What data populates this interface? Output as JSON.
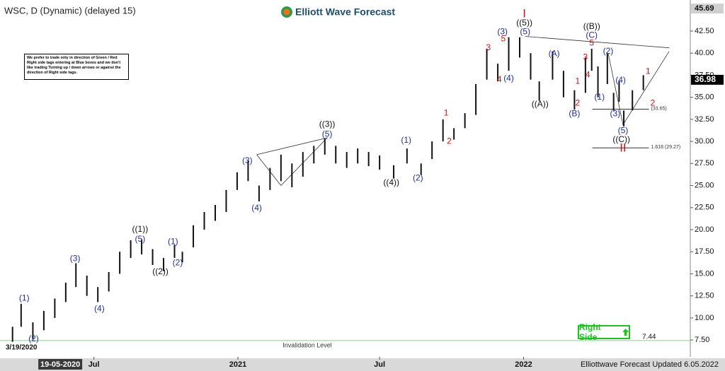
{
  "chart_data": {
    "type": "ohlc",
    "title": "WSC, D (Dynamic) (delayed 15)",
    "logo": "Elliott Wave Forecast",
    "notice": "We prefer to trade only in direction of Green / Red Right side tags entering at Blue boxes and we don't like trading Turning up / down arrows or against the direction of Right side tags.",
    "footer": "Elliottwave Forecast Updated 6.05.2022",
    "start_label": "3/19/2020",
    "right_side": "Right Side",
    "cursor_label": {
      "value": "2020-05-19",
      "label": "19-05-2020"
    },
    "xlim": [
      "2020-03-03",
      "2022-08-02"
    ],
    "ylim": [
      5.59,
      46.02
    ],
    "xticks": [
      {
        "value": "2020-07-01",
        "label": "Jul"
      },
      {
        "value": "2021-01-01",
        "label": "2021"
      },
      {
        "value": "2021-07-01",
        "label": "Jul"
      },
      {
        "value": "2022-01-01",
        "label": "2022"
      }
    ],
    "yticks": [
      {
        "value": 7.5,
        "label": "7.50"
      },
      {
        "value": 10,
        "label": "10.00"
      },
      {
        "value": 12.5,
        "label": "12.50"
      },
      {
        "value": 15,
        "label": "15.00"
      },
      {
        "value": 17.5,
        "label": "17.50"
      },
      {
        "value": 20,
        "label": "20.00"
      },
      {
        "value": 22.5,
        "label": "22.50"
      },
      {
        "value": 25,
        "label": "25.00"
      },
      {
        "value": 27.5,
        "label": "27.50"
      },
      {
        "value": 30,
        "label": "30.00"
      },
      {
        "value": 32.5,
        "label": "32.50"
      },
      {
        "value": 35,
        "label": "35.00"
      },
      {
        "value": 37.5,
        "label": "37.50"
      },
      {
        "value": 40,
        "label": "40.00"
      },
      {
        "value": 42.5,
        "label": "42.50"
      }
    ],
    "top_label": {
      "value": 45.69,
      "label": "45.69"
    },
    "last": {
      "value": 36.98,
      "label": "36.98"
    },
    "color": "#111111",
    "bars": {
      "x": [
        "2020-03-19",
        "2020-03-30",
        "2020-04-14",
        "2020-04-28",
        "2020-05-12",
        "2020-05-26",
        "2020-06-08",
        "2020-06-22",
        "2020-07-06",
        "2020-07-20",
        "2020-08-03",
        "2020-08-17",
        "2020-08-31",
        "2020-09-14",
        "2020-09-28",
        "2020-10-12",
        "2020-10-22",
        "2020-11-05",
        "2020-11-19",
        "2020-12-03",
        "2020-12-17",
        "2020-12-31",
        "2021-01-14",
        "2021-01-28",
        "2021-02-11",
        "2021-02-25",
        "2021-03-11",
        "2021-03-25",
        "2021-04-08",
        "2021-04-22",
        "2021-05-06",
        "2021-05-20",
        "2021-06-03",
        "2021-06-17",
        "2021-07-01",
        "2021-07-19",
        "2021-08-05",
        "2021-08-23",
        "2021-09-06",
        "2021-09-20",
        "2021-10-04",
        "2021-10-18",
        "2021-11-01",
        "2021-11-15",
        "2021-11-29",
        "2021-12-13",
        "2021-12-27",
        "2022-01-10",
        "2022-01-21",
        "2022-02-07",
        "2022-02-21",
        "2022-03-07",
        "2022-03-21",
        "2022-03-29",
        "2022-04-06",
        "2022-04-18",
        "2022-04-26",
        "2022-05-03",
        "2022-05-09",
        "2022-05-20",
        "2022-06-03"
      ],
      "high": [
        9.0,
        11.6,
        9.5,
        10.8,
        12.2,
        14.0,
        16.2,
        14.8,
        13.5,
        15.2,
        17.5,
        18.8,
        18.9,
        17.8,
        16.8,
        18.3,
        17.5,
        20.5,
        22.0,
        22.8,
        24.5,
        26.5,
        27.8,
        25.0,
        27.0,
        28.5,
        27.5,
        28.8,
        29.5,
        30.3,
        29.5,
        28.8,
        29.2,
        28.8,
        28.4,
        27.3,
        29.2,
        27.5,
        30.0,
        32.5,
        31.5,
        33.2,
        36.5,
        40.5,
        38.8,
        41.8,
        41.8,
        40.0,
        36.8,
        40.2,
        38.0,
        35.8,
        39.5,
        40.5,
        38.5,
        40.0,
        35.5,
        36.8,
        33.5,
        35.8,
        37.5
      ],
      "low": [
        7.3,
        9.0,
        7.6,
        8.6,
        10.0,
        11.8,
        13.5,
        12.5,
        11.8,
        13.0,
        15.0,
        16.8,
        17.2,
        16.0,
        15.3,
        16.8,
        16.3,
        18.0,
        20.0,
        21.0,
        22.0,
        24.5,
        25.5,
        23.2,
        24.5,
        25.5,
        24.8,
        26.0,
        27.5,
        28.5,
        27.5,
        27.0,
        27.5,
        27.2,
        26.8,
        25.8,
        27.5,
        26.2,
        28.0,
        30.0,
        30.2,
        31.5,
        33.0,
        37.0,
        36.8,
        38.0,
        39.5,
        37.0,
        34.6,
        37.0,
        35.0,
        33.6,
        35.5,
        38.0,
        35.0,
        36.5,
        33.5,
        34.5,
        31.7,
        33.5,
        35.8
      ]
    },
    "levels": [
      {
        "value": 7.44,
        "label": "7.44",
        "note": "Invalidation Level",
        "color": "#7fd77f"
      },
      {
        "value": 33.65,
        "label": "(33.65)",
        "start": "2022-04-06",
        "color": "#333333"
      },
      {
        "value": 29.27,
        "label": "1.618 (29.27)",
        "start": "2022-04-06",
        "color": "#333333"
      }
    ],
    "trendlines": [
      {
        "x": [
          "2022-01-03",
          "2022-07-06"
        ],
        "y": [
          41.9,
          40.6
        ]
      },
      {
        "x": [
          "2022-04-19",
          "2022-05-08",
          "2022-07-06"
        ],
        "y": [
          40.0,
          31.9,
          40.2
        ]
      },
      {
        "x": [
          "2021-01-25",
          "2021-04-25",
          "2021-02-25",
          "2021-01-25"
        ],
        "y": [
          28.5,
          30.4,
          25.0,
          28.5
        ]
      }
    ],
    "annotations": [
      {
        "text": "(1)",
        "x": "2020-04-03",
        "y": 12.2,
        "color": "#1f2f9a"
      },
      {
        "text": "(2)",
        "x": "2020-04-15",
        "y": 7.6,
        "color": "#1f2f9a"
      },
      {
        "text": "(3)",
        "x": "2020-06-07",
        "y": 16.7,
        "color": "#1f2f9a"
      },
      {
        "text": "(4)",
        "x": "2020-07-08",
        "y": 11.0,
        "color": "#1f2f9a"
      },
      {
        "text": "((1))",
        "x": "2020-08-29",
        "y": 20.0,
        "color": "#111111"
      },
      {
        "text": "(5)",
        "x": "2020-08-29",
        "y": 18.9,
        "color": "#1f2f9a"
      },
      {
        "text": "((2))",
        "x": "2020-09-24",
        "y": 15.2,
        "color": "#111111"
      },
      {
        "text": "(1)",
        "x": "2020-10-10",
        "y": 18.6,
        "color": "#1f2f9a"
      },
      {
        "text": "(2)",
        "x": "2020-10-16",
        "y": 16.2,
        "color": "#1f2f9a"
      },
      {
        "text": "(3)",
        "x": "2021-01-13",
        "y": 27.8,
        "color": "#1f2f9a"
      },
      {
        "text": "(4)",
        "x": "2021-01-25",
        "y": 22.4,
        "color": "#1f2f9a"
      },
      {
        "text": "((3))",
        "x": "2021-04-25",
        "y": 31.9,
        "color": "#111111"
      },
      {
        "text": "(5)",
        "x": "2021-04-25",
        "y": 30.8,
        "color": "#1f2f9a"
      },
      {
        "text": "((4))",
        "x": "2021-07-16",
        "y": 25.3,
        "color": "#111111"
      },
      {
        "text": "(1)",
        "x": "2021-08-04",
        "y": 30.1,
        "color": "#1f2f9a"
      },
      {
        "text": "(2)",
        "x": "2021-08-19",
        "y": 25.8,
        "color": "#1f2f9a"
      },
      {
        "text": "1",
        "x": "2021-09-24",
        "y": 33.2,
        "color": "#cc1111"
      },
      {
        "text": "2",
        "x": "2021-09-28",
        "y": 30.0,
        "color": "#cc1111"
      },
      {
        "text": "3",
        "x": "2021-11-17",
        "y": 40.6,
        "color": "#cc1111"
      },
      {
        "text": "4",
        "x": "2021-12-01",
        "y": 37.0,
        "color": "#cc1111"
      },
      {
        "text": "(3)",
        "x": "2021-12-05",
        "y": 42.4,
        "color": "#1f2f9a"
      },
      {
        "text": "5",
        "x": "2021-12-06",
        "y": 41.6,
        "color": "#cc1111"
      },
      {
        "text": "(4)",
        "x": "2021-12-13",
        "y": 37.1,
        "color": "#1f2f9a"
      },
      {
        "text": "I",
        "x": "2022-01-02",
        "y": 44.4,
        "color": "#cc1111"
      },
      {
        "text": "((5))",
        "x": "2022-01-02",
        "y": 43.4,
        "color": "#111111"
      },
      {
        "text": "(5)",
        "x": "2022-01-03",
        "y": 42.4,
        "color": "#1f2f9a"
      },
      {
        "text": "((A))",
        "x": "2022-01-22",
        "y": 34.2,
        "color": "#111111"
      },
      {
        "text": "(A)",
        "x": "2022-02-09",
        "y": 39.9,
        "color": "#1f2f9a"
      },
      {
        "text": "1",
        "x": "2022-03-11",
        "y": 36.8,
        "color": "#cc1111"
      },
      {
        "text": "2",
        "x": "2022-03-11",
        "y": 34.3,
        "color": "#cc1111"
      },
      {
        "text": "(B)",
        "x": "2022-03-07",
        "y": 33.1,
        "color": "#1f2f9a"
      },
      {
        "text": "3",
        "x": "2022-03-21",
        "y": 39.5,
        "color": "#cc1111"
      },
      {
        "text": "4",
        "x": "2022-03-24",
        "y": 37.5,
        "color": "#cc1111"
      },
      {
        "text": "((B))",
        "x": "2022-03-29",
        "y": 43.0,
        "color": "#111111"
      },
      {
        "text": "(C)",
        "x": "2022-03-29",
        "y": 42.0,
        "color": "#1f2f9a"
      },
      {
        "text": "5",
        "x": "2022-03-29",
        "y": 41.1,
        "color": "#cc1111"
      },
      {
        "text": "(1)",
        "x": "2022-04-08",
        "y": 35.0,
        "color": "#1f2f9a"
      },
      {
        "text": "(2)",
        "x": "2022-04-19",
        "y": 40.2,
        "color": "#1f2f9a"
      },
      {
        "text": "(3)",
        "x": "2022-04-28",
        "y": 33.1,
        "color": "#1f2f9a"
      },
      {
        "text": "(4)",
        "x": "2022-05-05",
        "y": 36.9,
        "color": "#1f2f9a"
      },
      {
        "text": "(5)",
        "x": "2022-05-08",
        "y": 31.2,
        "color": "#1f2f9a"
      },
      {
        "text": "((C))",
        "x": "2022-05-06",
        "y": 30.2,
        "color": "#111111"
      },
      {
        "text": "II",
        "x": "2022-05-08",
        "y": 29.2,
        "color": "#cc1111"
      },
      {
        "text": "1",
        "x": "2022-06-09",
        "y": 37.9,
        "color": "#cc1111"
      },
      {
        "text": "2",
        "x": "2022-06-15",
        "y": 34.3,
        "color": "#cc1111"
      }
    ]
  }
}
